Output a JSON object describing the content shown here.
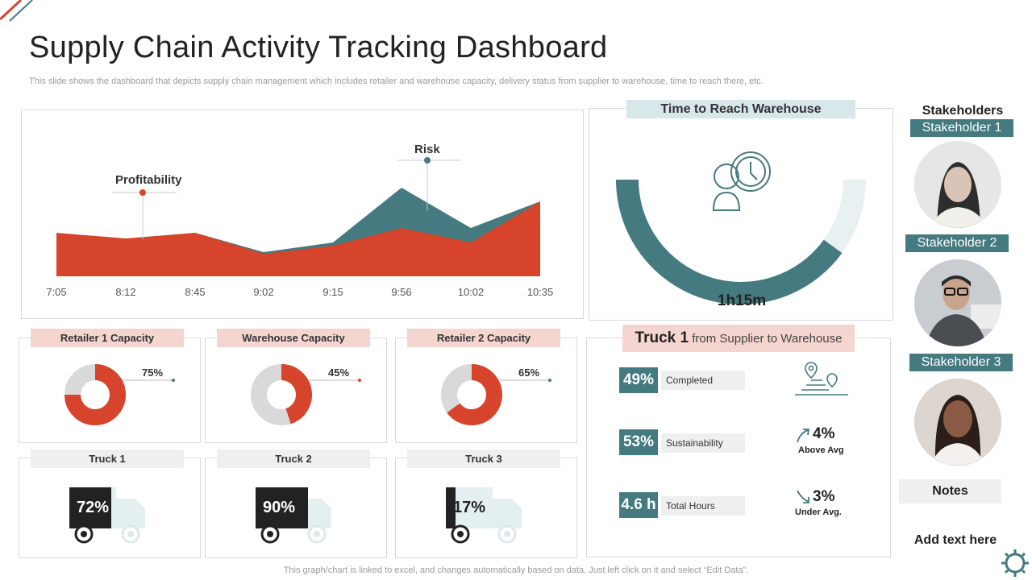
{
  "header": {
    "title": "Supply Chain Activity Tracking Dashboard",
    "subtitle": "This slide shows the dashboard that depicts supply chain management which includes retailer and warehouse capacity, delivery status from supplier to warehouse, time to reach there, etc."
  },
  "area_chart": {
    "annotations": {
      "profitability": "Profitability",
      "risk": "Risk"
    },
    "chart_data": {
      "type": "area",
      "categories": [
        "7:05",
        "8:12",
        "8:45",
        "9:02",
        "9:15",
        "9:56",
        "10:02",
        "10:35"
      ],
      "series": [
        {
          "name": "Risk",
          "values": [
            52,
            46,
            54,
            30,
            42,
            110,
            60,
            93
          ]
        },
        {
          "name": "Profitability",
          "values": [
            54,
            47,
            54,
            28,
            38,
            60,
            42,
            93
          ]
        }
      ],
      "colors": {
        "Risk": "#447a80",
        "Profitability": "#d5442b"
      },
      "ylim": [
        0,
        125
      ]
    }
  },
  "time_card": {
    "title": "Time to Reach Warehouse",
    "value": "1h15m",
    "progress": 0.8
  },
  "capacity": [
    {
      "title": "Retailer 1 Capacity",
      "label": "75%",
      "value": 75
    },
    {
      "title": "Warehouse Capacity",
      "label": "45%",
      "value": 45
    },
    {
      "title": "Retailer 2 Capacity",
      "label": "65%",
      "value": 65
    }
  ],
  "trucks": [
    {
      "title": "Truck 1",
      "label": "72%",
      "value": 72
    },
    {
      "title": "Truck 2",
      "label": "90%",
      "value": 90
    },
    {
      "title": "Truck 3",
      "label": "17%",
      "value": 17
    }
  ],
  "truck_route": {
    "title_strong": "Truck 1",
    "title_rest": "from Supplier to Warehouse",
    "metrics": [
      {
        "value": "49%",
        "label": "Completed"
      },
      {
        "value": "53%",
        "label": "Sustainability"
      },
      {
        "value": "4.6 h",
        "label": "Total Hours"
      }
    ],
    "indicators": [
      {
        "value": "4%",
        "label": "Above Avg",
        "icon": "arrow-up-icon"
      },
      {
        "value": "3%",
        "label": "Under Avg.",
        "icon": "arrow-down-icon"
      }
    ]
  },
  "stakeholders": {
    "title": "Stakeholders",
    "items": [
      "Stakeholder 1",
      "Stakeholder 2",
      "Stakeholder 3"
    ]
  },
  "notes": {
    "title": "Notes",
    "text": "Add text here"
  },
  "footer": "This graph/chart is linked to excel, and changes automatically based on data. Just left click on it and select “Edit Data”.",
  "colors": {
    "teal": "#447a80",
    "red": "#d5442b",
    "pink": "#f5d5cf",
    "grey": "#efefef"
  }
}
